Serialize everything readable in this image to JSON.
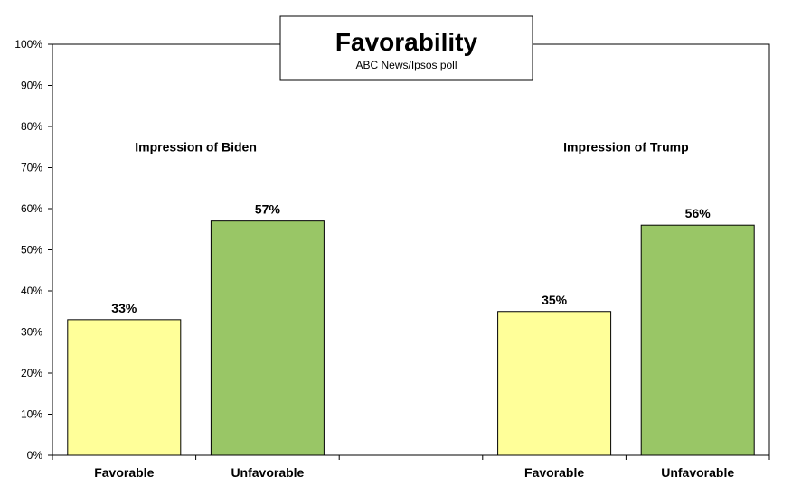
{
  "chart_data": {
    "type": "bar",
    "title": "Favorability",
    "subtitle": "ABC News/Ipsos  poll",
    "ylim": [
      0,
      100
    ],
    "y_ticks": [
      "0%",
      "10%",
      "20%",
      "30%",
      "40%",
      "50%",
      "60%",
      "70%",
      "80%",
      "90%",
      "100%"
    ],
    "grid": false,
    "colors": {
      "Favorable": "#ffff99",
      "Unfavorable": "#99c666"
    },
    "groups": [
      {
        "title": "Impression of Biden",
        "categories": [
          "Favorable",
          "Unfavorable"
        ],
        "values": [
          33,
          57
        ],
        "labels": [
          "33%",
          "57%"
        ]
      },
      {
        "title": "Impression of Trump",
        "categories": [
          "Favorable",
          "Unfavorable"
        ],
        "values": [
          35,
          56
        ],
        "labels": [
          "35%",
          "56%"
        ]
      }
    ]
  }
}
